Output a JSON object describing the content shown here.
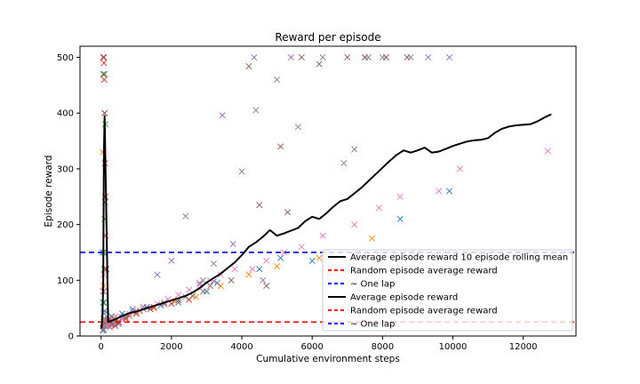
{
  "chart_data": {
    "type": "scatter",
    "title": "Reward per episode",
    "xlabel": "Cumulative environment steps",
    "ylabel": "Episode reward",
    "xlim": [
      -600,
      13500
    ],
    "ylim": [
      0,
      520
    ],
    "xticks": [
      0,
      2000,
      4000,
      6000,
      8000,
      10000,
      12000
    ],
    "yticks": [
      0,
      100,
      200,
      300,
      400,
      500
    ],
    "grid": false,
    "legend_position": "lower-right",
    "hlines": [
      {
        "y": 150,
        "color": "#0000ff",
        "style": "dashed"
      },
      {
        "y": 25,
        "color": "#ff0000",
        "style": "dashed"
      }
    ],
    "rolling_mean": {
      "color": "#000000",
      "x": [
        0,
        20,
        40,
        60,
        80,
        100,
        200,
        400,
        600,
        800,
        1000,
        1200,
        1400,
        1600,
        1800,
        2000,
        2200,
        2400,
        2600,
        2800,
        3000,
        3200,
        3400,
        3600,
        3800,
        4000,
        4200,
        4400,
        4600,
        4800,
        5000,
        5200,
        5400,
        5600,
        5800,
        6000,
        6200,
        6400,
        6600,
        6800,
        7000,
        7200,
        7400,
        7600,
        7800,
        8000,
        8200,
        8400,
        8600,
        8800,
        9000,
        9200,
        9400,
        9600,
        9800,
        10000,
        10200,
        10400,
        10600,
        10800,
        11000,
        11200,
        11400,
        11600,
        11800,
        12000,
        12200,
        12400,
        12600,
        12800
      ],
      "y": [
        20,
        15,
        40,
        90,
        330,
        395,
        25,
        30,
        36,
        41,
        44,
        48,
        52,
        56,
        60,
        64,
        68,
        72,
        78,
        86,
        96,
        104,
        112,
        122,
        132,
        145,
        160,
        168,
        178,
        190,
        180,
        184,
        189,
        194,
        206,
        214,
        210,
        220,
        232,
        242,
        246,
        256,
        266,
        278,
        290,
        302,
        314,
        325,
        333,
        329,
        333,
        338,
        329,
        331,
        336,
        341,
        345,
        349,
        351,
        352,
        355,
        365,
        372,
        376,
        378,
        379,
        380,
        385,
        392,
        398
      ]
    },
    "series": [
      {
        "color": "#1f77b4",
        "x": [
          40,
          60,
          80,
          100,
          70,
          120,
          160,
          220,
          300,
          420,
          500,
          600,
          900,
          1300,
          1700,
          2200,
          3000,
          3300,
          4500,
          5100,
          6000,
          7300,
          8500,
          9900
        ],
        "y": [
          150,
          60,
          20,
          45,
          12,
          30,
          25,
          18,
          35,
          28,
          22,
          40,
          48,
          52,
          55,
          60,
          80,
          95,
          120,
          140,
          135,
          150,
          210,
          260
        ]
      },
      {
        "color": "#ff7f0e",
        "x": [
          50,
          70,
          90,
          110,
          140,
          200,
          260,
          380,
          480,
          700,
          1000,
          1500,
          2100,
          2700,
          3400,
          4200,
          5000,
          6200,
          7700
        ],
        "y": [
          330,
          90,
          40,
          18,
          22,
          27,
          20,
          33,
          26,
          30,
          42,
          50,
          62,
          70,
          90,
          110,
          125,
          140,
          175
        ]
      },
      {
        "color": "#2ca02c",
        "x": [
          60,
          70,
          80,
          90,
          100,
          110,
          120,
          100,
          85,
          95
        ],
        "y": [
          10,
          30,
          60,
          120,
          210,
          240,
          380,
          470,
          150,
          25
        ]
      },
      {
        "color": "#d62728",
        "x": [
          60,
          80,
          90,
          100,
          110,
          120,
          130,
          150,
          200,
          300,
          400,
          500,
          800,
          1100,
          1500,
          2000,
          2500
        ],
        "y": [
          500,
          490,
          460,
          400,
          310,
          250,
          180,
          120,
          30,
          22,
          18,
          25,
          36,
          45,
          52,
          58,
          65
        ]
      },
      {
        "color": "#9467bd",
        "x": [
          40,
          70,
          90,
          130,
          200,
          350,
          600,
          900,
          1200,
          1600,
          2000,
          2400,
          2800,
          3200,
          3450,
          3750,
          4350,
          4600,
          5400,
          7500,
          8100,
          9300,
          9900
        ],
        "y": [
          10,
          25,
          40,
          18,
          30,
          25,
          33,
          44,
          52,
          110,
          135,
          215,
          95,
          98,
          396,
          165,
          500,
          100,
          500,
          500,
          500,
          500,
          500
        ]
      },
      {
        "color": "#8c564b",
        "x": [
          60,
          80,
          100,
          150,
          250,
          400,
          700,
          1000,
          1400,
          1800,
          2200,
          2600,
          2900,
          3100,
          3700,
          4200,
          4500,
          4700,
          5100,
          5300,
          5700,
          6200,
          7000,
          7500,
          8100,
          8700
        ],
        "y": [
          470,
          500,
          400,
          20,
          28,
          24,
          32,
          40,
          48,
          57,
          64,
          72,
          80,
          90,
          100,
          484,
          235,
          90,
          340,
          222,
          500,
          488,
          500,
          500,
          500,
          500
        ]
      },
      {
        "color": "#e377c2",
        "x": [
          50,
          75,
          95,
          180,
          250,
          320,
          420,
          600,
          800,
          1000,
          1300,
          1600,
          1900,
          2200,
          2500,
          2800,
          3100,
          3400,
          3800,
          4300,
          4700,
          5200,
          5700,
          6300,
          7200,
          7900,
          8500,
          9600,
          10200,
          12700
        ],
        "y": [
          80,
          110,
          30,
          22,
          15,
          28,
          35,
          30,
          40,
          45,
          50,
          58,
          66,
          74,
          83,
          92,
          100,
          110,
          120,
          120,
          135,
          150,
          160,
          180,
          200,
          230,
          250,
          260,
          300,
          332
        ]
      },
      {
        "color": "#7f7f7f",
        "x": [
          80,
          120,
          300,
          700,
          1200,
          1800,
          2400,
          2900,
          3200,
          4000,
          4400,
          5000,
          5600,
          6300,
          6900,
          7200,
          7600,
          8000,
          8800
        ],
        "y": [
          80,
          30,
          20,
          35,
          48,
          60,
          70,
          100,
          130,
          295,
          405,
          460,
          375,
          500,
          310,
          335,
          500,
          500,
          500
        ]
      }
    ],
    "legend": [
      {
        "label": "Average episode reward 10 episode rolling mean",
        "color": "#000000",
        "style": "solid"
      },
      {
        "label": "Random episode average reward",
        "color": "#ff0000",
        "style": "dashed"
      },
      {
        "label": "~ One lap",
        "color": "#0000ff",
        "style": "dashed"
      },
      {
        "label": "Average episode reward",
        "color": "#000000",
        "style": "solid"
      },
      {
        "label": "Random episode average reward",
        "color": "#ff0000",
        "style": "dashed"
      },
      {
        "label": "~ One lap",
        "color": "#0000ff",
        "style": "dashed"
      }
    ]
  }
}
